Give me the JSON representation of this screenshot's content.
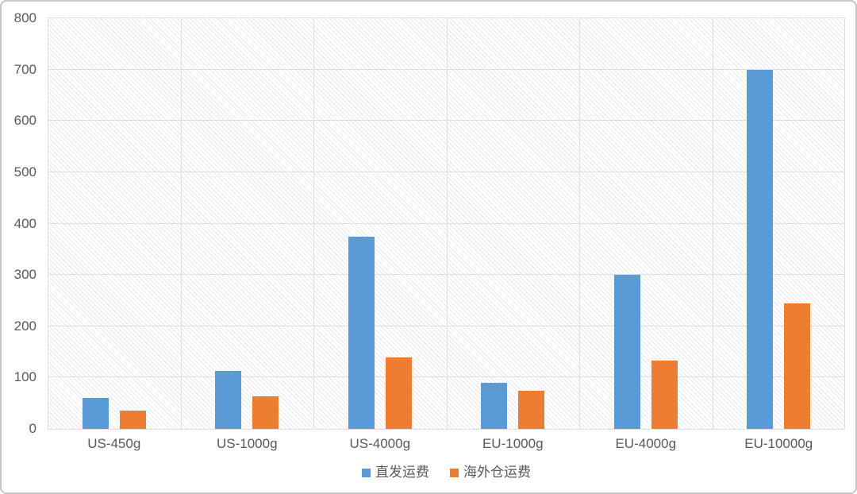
{
  "chart_data": {
    "type": "bar",
    "title": "",
    "xlabel": "",
    "ylabel": "",
    "categories": [
      "US-450g",
      "US-1000g",
      "US-4000g",
      "EU-1000g",
      "EU-4000g",
      "EU-10000g"
    ],
    "series": [
      {
        "name": "直发运费",
        "color": "#5B9BD5",
        "values": [
          60,
          113,
          375,
          90,
          300,
          700
        ]
      },
      {
        "name": "海外仓运费",
        "color": "#ED7D31",
        "values": [
          35,
          63,
          140,
          74,
          133,
          245
        ]
      }
    ],
    "ylim": [
      0,
      800
    ],
    "yticks": [
      0,
      100,
      200,
      300,
      400,
      500,
      600,
      700,
      800
    ],
    "grid": true,
    "plot_background": "diagonal-hatch",
    "legend_position": "bottom"
  },
  "colors": {
    "axis_text": "#595959",
    "gridline": "#dedede",
    "frame_border": "#c7c7c7",
    "series_blue": "#5B9BD5",
    "series_orange": "#ED7D31"
  }
}
